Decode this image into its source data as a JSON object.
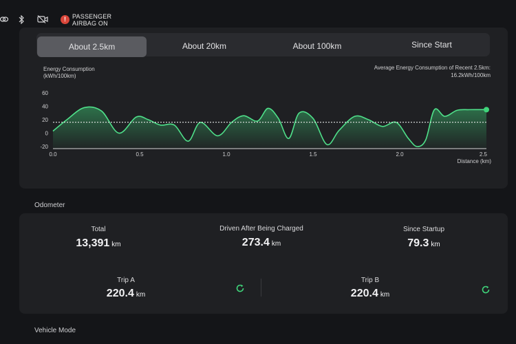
{
  "status_bar": {
    "icons": [
      "link-icon",
      "bluetooth-icon",
      "camera-off-icon"
    ],
    "airbag_line1": "PASSENGER",
    "airbag_line2": "AIRBAG ON"
  },
  "tabs": [
    {
      "label": "About 2.5km",
      "active": true
    },
    {
      "label": "About 20km",
      "active": false
    },
    {
      "label": "About 100km",
      "active": false
    },
    {
      "label": "Since Start",
      "active": false
    }
  ],
  "chart": {
    "ylabel_line1": "Energy Consumption",
    "ylabel_line2": "(kWh/100km)",
    "avg_line1": "Average Energy Consumption of Recent 2.5km:",
    "avg_line2": "16.2kWh/100km",
    "xlabel_line1": "2.5",
    "xlabel_line2": "Distance (km)"
  },
  "chart_data": {
    "type": "area",
    "x_ticks": [
      "0.0",
      "0.5",
      "1.0",
      "1.5",
      "2.0",
      "2.5"
    ],
    "y_ticks": [
      "60",
      "40",
      "20",
      "0",
      "-20"
    ],
    "ylim": [
      -20,
      60
    ],
    "xlim": [
      0,
      2.5
    ],
    "average": 16.2,
    "x": [
      0.0,
      0.08,
      0.18,
      0.28,
      0.38,
      0.48,
      0.55,
      0.62,
      0.7,
      0.78,
      0.85,
      0.95,
      1.03,
      1.1,
      1.18,
      1.24,
      1.3,
      1.36,
      1.42,
      1.5,
      1.58,
      1.65,
      1.74,
      1.82,
      1.9,
      1.98,
      2.05,
      2.1,
      2.15,
      2.2,
      2.26,
      2.33,
      2.4,
      2.5
    ],
    "y": [
      3,
      20,
      38,
      33,
      0,
      24,
      20,
      12,
      12,
      -12,
      16,
      -4,
      16,
      26,
      18,
      37,
      22,
      -8,
      30,
      22,
      -17,
      4,
      25,
      20,
      10,
      16,
      -8,
      -20,
      -10,
      35,
      25,
      34,
      35,
      35
    ],
    "grid": false
  },
  "odometer": {
    "title": "Odometer",
    "total": {
      "label": "Total",
      "value": "13,391",
      "unit": "km"
    },
    "charged": {
      "label": "Driven After Being Charged",
      "value": "273.4",
      "unit": "km"
    },
    "startup": {
      "label": "Since Startup",
      "value": "79.3",
      "unit": "km"
    },
    "trip_a": {
      "label": "Trip A",
      "value": "220.4",
      "unit": "km"
    },
    "trip_b": {
      "label": "Trip B",
      "value": "220.4",
      "unit": "km"
    }
  },
  "vehicle_mode": {
    "title": "Vehicle Mode"
  },
  "colors": {
    "accent_green": "#3fd47a",
    "background": "#141518",
    "card": "#1f2023"
  }
}
